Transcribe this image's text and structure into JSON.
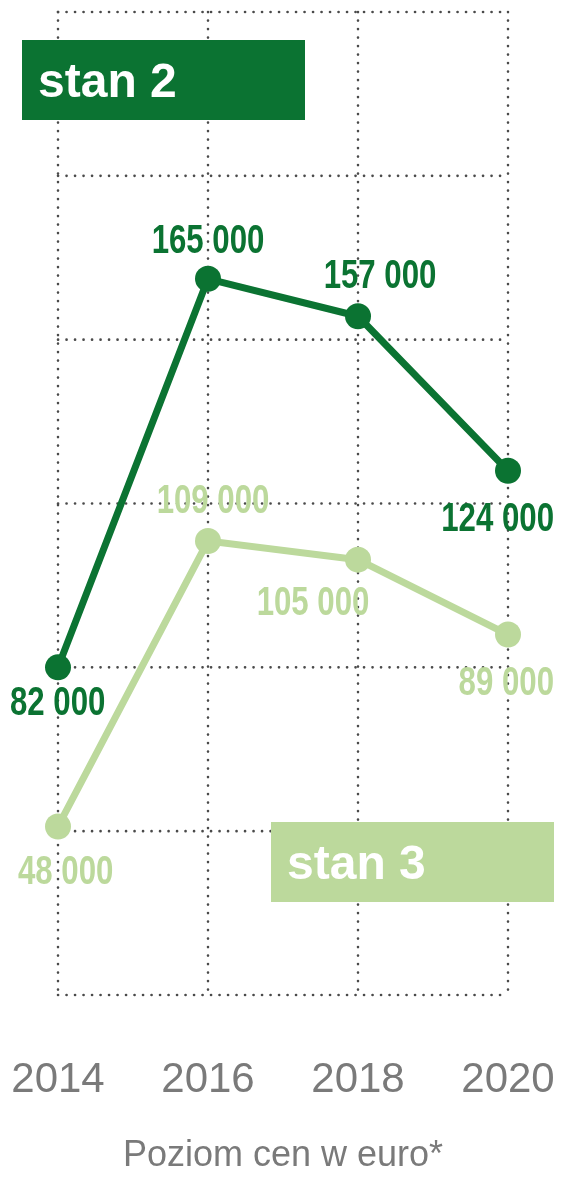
{
  "chart_data": {
    "type": "line",
    "categories": [
      "2014",
      "2016",
      "2018",
      "2020"
    ],
    "series": [
      {
        "name": "stan 2",
        "color": "#0b7332",
        "values": [
          82000,
          165000,
          157000,
          124000
        ],
        "value_labels": [
          "82 000",
          "165 000",
          "157 000",
          "124 000"
        ]
      },
      {
        "name": "stan 3",
        "color": "#bcd99c",
        "values": [
          48000,
          109000,
          105000,
          89000
        ],
        "value_labels": [
          "48 000",
          "109 000",
          "105 000",
          "89 000"
        ]
      }
    ],
    "xlabel": "Poziom cen w euro*",
    "ylim": [
      12000,
      222000
    ],
    "yticks": [
      12000,
      47000,
      82000,
      117000,
      152000,
      187000,
      222000
    ],
    "grid": true,
    "tick_labels": "x",
    "marker": "circle",
    "line_style": "solid"
  }
}
